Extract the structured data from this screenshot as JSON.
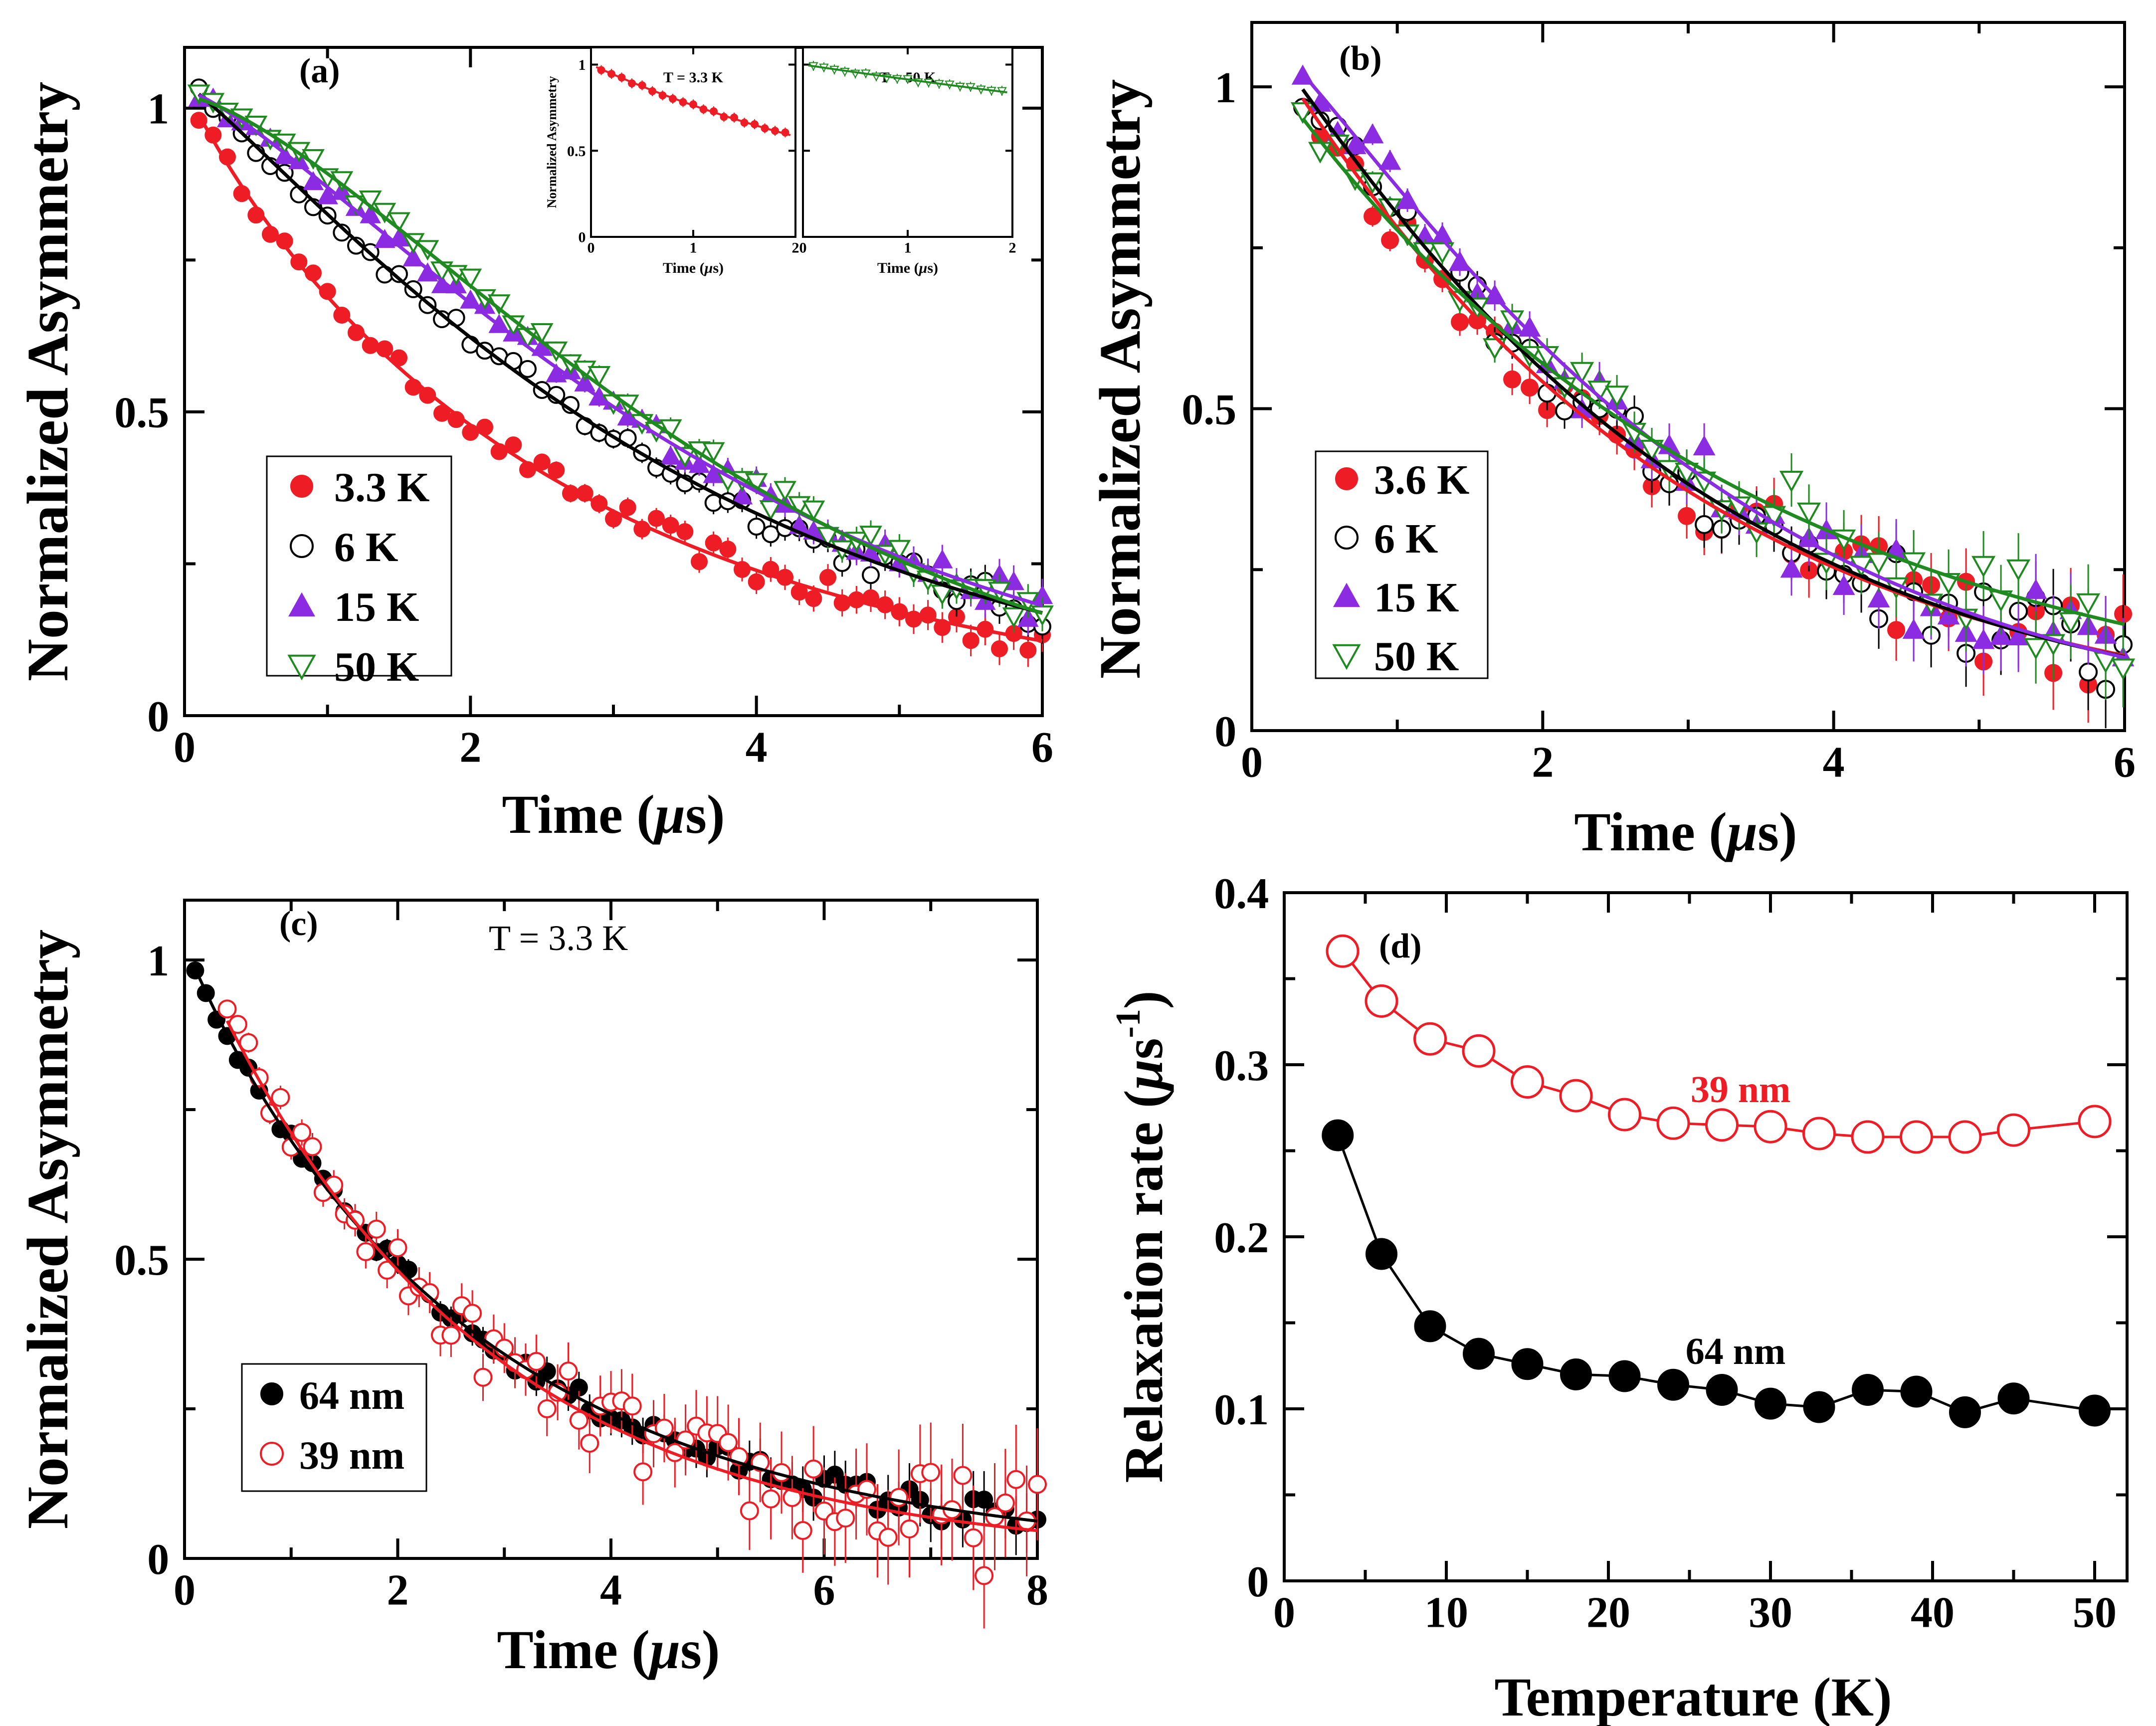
{
  "figure": {
    "panels": [
      "a",
      "b",
      "c",
      "d"
    ]
  },
  "colors": {
    "red": "#ee1c24",
    "black": "#000000",
    "purple": "#8b2be2",
    "green": "#1f8a1f"
  },
  "chart_data": [
    {
      "id": "a",
      "panel_label": "(a)",
      "type": "scatter",
      "xlabel_pre": "Time (",
      "xlabel_mu": "μ",
      "xlabel_post": "s)",
      "ylabel": "Normalized Asymmetry",
      "xlim": [
        0,
        6
      ],
      "ylim": [
        0,
        1.1
      ],
      "xticks": [
        0,
        2,
        4,
        6
      ],
      "xtick_labels": [
        "0",
        "2",
        "4",
        "6"
      ],
      "yticks": [
        0,
        0.5,
        1
      ],
      "ytick_labels": [
        "0",
        "0.5",
        "1"
      ],
      "legend_position": "bottom-left",
      "series": [
        {
          "name": "3.3 K",
          "marker": "filled-circle",
          "color": "#ee1c24",
          "fit": {
            "A": 1.04,
            "lambda": 0.38,
            "beta": 0.92
          },
          "x_start": 0.1,
          "x_end": 6.0,
          "step": 0.1
        },
        {
          "name": "6 K",
          "marker": "open-circle",
          "color": "#000000",
          "fit": {
            "A": 1.04,
            "lambda": 0.28,
            "beta": 1.15
          },
          "x_start": 0.1,
          "x_end": 6.0,
          "step": 0.1
        },
        {
          "name": "15 K",
          "marker": "filled-triangle",
          "color": "#8b2be2",
          "fit": {
            "A": 1.03,
            "lambda": 0.255,
            "beta": 1.3
          },
          "x_start": 0.1,
          "x_end": 6.0,
          "step": 0.1
        },
        {
          "name": "50 K",
          "marker": "open-triangle-down",
          "color": "#1f8a1f",
          "fit": {
            "A": 1.02,
            "lambda": 0.25,
            "beta": 1.45
          },
          "x_start": 0.1,
          "x_end": 6.0,
          "step": 0.1
        }
      ],
      "insets": [
        {
          "title": "T = 3.3 K",
          "ylabel": "Normalized Asymmetry",
          "xlabel_pre": "Time (",
          "xlabel_mu": "μ",
          "xlabel_post": "s)",
          "xlim": [
            0,
            2
          ],
          "ylim": [
            0,
            1.1
          ],
          "xticks": [
            0,
            1,
            2
          ],
          "xtick_labels": [
            "0",
            "1",
            "2"
          ],
          "yticks": [
            0,
            0.5,
            1
          ],
          "ytick_labels": [
            "0",
            "0.5",
            "1"
          ],
          "color": "#ee1c24",
          "marker": "filled-circle",
          "fit": {
            "A": 1.0,
            "lambda": 0.27,
            "beta": 1.0
          },
          "x_start": 0.1,
          "x_end": 1.9,
          "step": 0.1
        },
        {
          "title": "T = 50 K",
          "ylabel": "",
          "xlabel_pre": "Time (",
          "xlabel_mu": "μ",
          "xlabel_post": "s)",
          "xlim": [
            0,
            2
          ],
          "ylim": [
            0,
            1.1
          ],
          "xticks": [
            0,
            1,
            2
          ],
          "xtick_labels": [
            "0",
            "1",
            "2"
          ],
          "yticks": [
            0,
            0.5,
            1
          ],
          "ytick_labels": [
            "",
            "",
            ""
          ],
          "color": "#1f8a1f",
          "marker": "open-triangle-down",
          "fit": {
            "A": 1.0,
            "lambda": 0.09,
            "beta": 1.0
          },
          "x_start": 0.1,
          "x_end": 1.9,
          "step": 0.1
        }
      ]
    },
    {
      "id": "b",
      "panel_label": "(b)",
      "type": "scatter",
      "xlabel_pre": "Time (",
      "xlabel_mu": "μ",
      "xlabel_post": "s)",
      "ylabel": "Normalized Asymmetry",
      "xlim": [
        0,
        6
      ],
      "ylim": [
        0,
        1.1
      ],
      "xticks": [
        0,
        2,
        4,
        6
      ],
      "xtick_labels": [
        "0",
        "2",
        "4",
        "6"
      ],
      "yticks": [
        0,
        0.5,
        1
      ],
      "ytick_labels": [
        "0",
        "0.5",
        "1"
      ],
      "legend_position": "bottom-left",
      "series": [
        {
          "name": "3.6 K",
          "marker": "filled-circle",
          "color": "#ee1c24",
          "fit": {
            "A": 1.1,
            "lambda": 0.36,
            "beta": 1.05
          },
          "x_start": 0.35,
          "x_end": 6.0,
          "step": 0.12
        },
        {
          "name": "6 K",
          "marker": "open-circle",
          "color": "#000000",
          "fit": {
            "A": 1.1,
            "lambda": 0.35,
            "beta": 1.1
          },
          "x_start": 0.35,
          "x_end": 6.0,
          "step": 0.12
        },
        {
          "name": "15 K",
          "marker": "filled-triangle",
          "color": "#8b2be2",
          "fit": {
            "A": 1.1,
            "lambda": 0.33,
            "beta": 1.2
          },
          "x_start": 0.35,
          "x_end": 6.0,
          "step": 0.12
        },
        {
          "name": "50 K",
          "marker": "open-triangle-down",
          "color": "#1f8a1f",
          "fit": {
            "A": 1.06,
            "lambda": 0.31,
            "beta": 1.0
          },
          "x_start": 0.35,
          "x_end": 6.0,
          "step": 0.12
        }
      ]
    },
    {
      "id": "c",
      "panel_label": "(c)",
      "annotation": "T = 3.3 K",
      "type": "scatter",
      "xlabel_pre": "Time (",
      "xlabel_mu": "μ",
      "xlabel_post": "s)",
      "ylabel": "Normalized Asymmetry",
      "xlim": [
        0,
        8
      ],
      "ylim": [
        0,
        1.1
      ],
      "xticks": [
        0,
        2,
        4,
        6,
        8
      ],
      "xtick_labels": [
        "0",
        "2",
        "4",
        "6",
        "8"
      ],
      "yticks": [
        0,
        0.5,
        1
      ],
      "ytick_labels": [
        "0",
        "0.5",
        "1"
      ],
      "legend_position": "bottom-left",
      "series": [
        {
          "name": "64 nm",
          "marker": "filled-circle",
          "color": "#000000",
          "fit": {
            "A": 1.03,
            "lambda": 0.37,
            "beta": 0.95
          },
          "x_start": 0.1,
          "x_end": 8.0,
          "step": 0.1
        },
        {
          "name": "39 nm",
          "marker": "open-circle",
          "color": "#ee1c24",
          "fit": {
            "A": 1.05,
            "lambda": 0.39,
            "beta": 1.0
          },
          "x_start": 0.4,
          "x_end": 8.0,
          "step": 0.1
        }
      ]
    },
    {
      "id": "d",
      "panel_label": "(d)",
      "type": "line",
      "xlabel": "Temperature (K)",
      "ylabel_pre": "Relaxation rate (",
      "ylabel_mu": "μ",
      "ylabel_unit": "s",
      "ylabel_sup": "-1",
      "ylabel_post": ")",
      "xlim": [
        0,
        52
      ],
      "ylim": [
        0,
        0.4
      ],
      "xticks": [
        0,
        10,
        20,
        30,
        40,
        50
      ],
      "xtick_labels": [
        "0",
        "10",
        "20",
        "30",
        "40",
        "50"
      ],
      "yticks": [
        0,
        0.1,
        0.2,
        0.3,
        0.4
      ],
      "ytick_labels": [
        "0",
        "0.1",
        "0.2",
        "0.3",
        "0.4"
      ],
      "series": [
        {
          "name": "39 nm",
          "label": "39 nm",
          "marker": "open-circle",
          "color": "#ee1c24",
          "x": [
            3.6,
            6,
            9,
            12,
            15,
            18,
            21,
            24,
            27,
            30,
            33,
            36,
            39,
            42,
            45,
            50
          ],
          "y": [
            0.366,
            0.337,
            0.315,
            0.308,
            0.29,
            0.282,
            0.271,
            0.266,
            0.265,
            0.264,
            0.26,
            0.258,
            0.258,
            0.258,
            0.262,
            0.267
          ]
        },
        {
          "name": "64 nm",
          "label": "64 nm",
          "marker": "filled-circle",
          "color": "#000000",
          "x": [
            3.3,
            6,
            9,
            12,
            15,
            18,
            21,
            24,
            27,
            30,
            33,
            36,
            39,
            42,
            45,
            50
          ],
          "y": [
            0.259,
            0.19,
            0.148,
            0.132,
            0.126,
            0.12,
            0.119,
            0.114,
            0.111,
            0.103,
            0.101,
            0.111,
            0.11,
            0.098,
            0.106,
            0.099
          ]
        }
      ]
    }
  ]
}
